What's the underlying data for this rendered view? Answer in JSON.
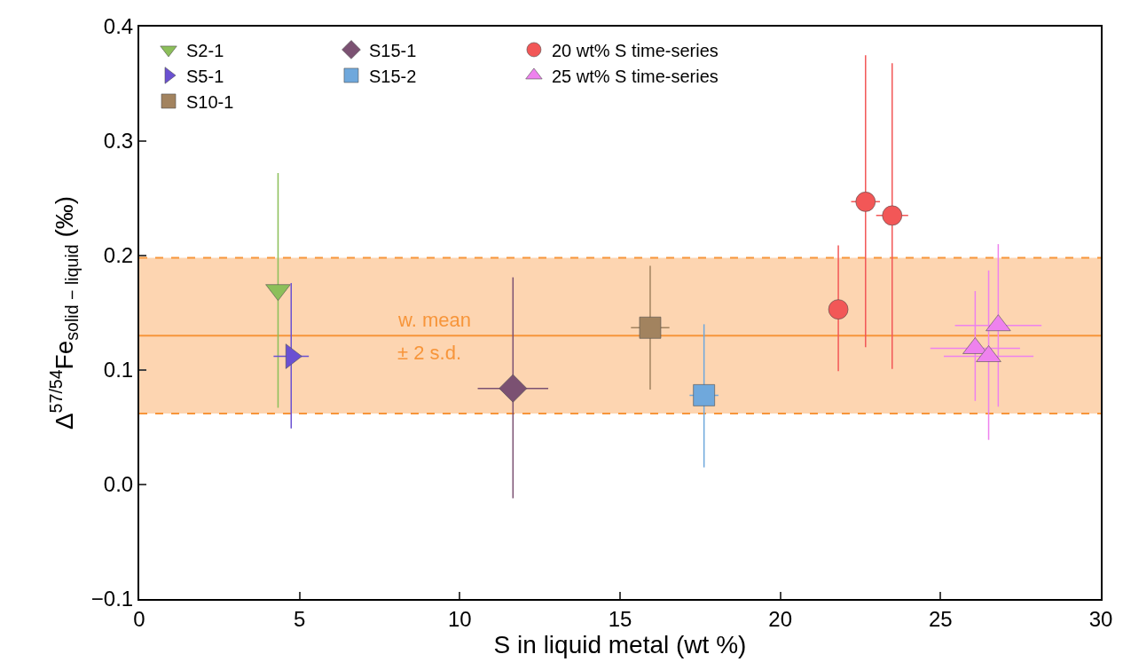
{
  "chart_data": {
    "type": "scatter",
    "xlabel": "S in liquid metal (wt %)",
    "ylabel": "Δ$^{57/54}$Fe$_{solid − liquid}$ (‰)",
    "xlim": [
      0,
      30
    ],
    "ylim": [
      -0.1,
      0.4
    ],
    "xticks": [
      0,
      5,
      10,
      15,
      20,
      25,
      30
    ],
    "yticks": [
      {
        "value": -0.1,
        "label": "−0.1"
      },
      {
        "value": 0.0,
        "label": "0.0"
      },
      {
        "value": 0.1,
        "label": "0.1"
      },
      {
        "value": 0.2,
        "label": "0.2"
      },
      {
        "value": 0.3,
        "label": "0.3"
      },
      {
        "value": 0.4,
        "label": "0.4"
      }
    ],
    "grid": false,
    "legend": "top left",
    "series": [
      {
        "name": "S2-1",
        "color": "#8cbf5a",
        "marker": "triangle-down",
        "x": [
          4.33
        ],
        "values": [
          0.17
        ],
        "errors": [
          [
            0.067,
            0.272
          ]
        ],
        "xerrors": [
          0.25
        ]
      },
      {
        "name": "S5-1",
        "color": "#6a50d2",
        "marker": "triangle-right",
        "x": [
          4.74
        ],
        "values": [
          0.112
        ],
        "errors": [
          [
            0.049,
            0.176
          ]
        ],
        "xerrors": [
          0.55
        ]
      },
      {
        "name": "S10-1",
        "color": "#a2835f",
        "marker": "square",
        "x": [
          15.94
        ],
        "values": [
          0.137
        ],
        "errors": [
          [
            0.083,
            0.191
          ]
        ],
        "xerrors": [
          0.6
        ]
      },
      {
        "name": "S15-1",
        "color": "#7b5172",
        "marker": "diamond",
        "x": [
          11.66
        ],
        "values": [
          0.084
        ],
        "errors": [
          [
            -0.012,
            0.181
          ]
        ],
        "xerrors": [
          1.1
        ]
      },
      {
        "name": "S15-2",
        "color": "#6fa8dc",
        "marker": "square",
        "x": [
          17.62
        ],
        "values": [
          0.078
        ],
        "errors": [
          [
            0.015,
            0.14
          ]
        ],
        "xerrors": [
          0.45
        ]
      },
      {
        "name": "20 wt% S time-series",
        "color": "#f25757",
        "marker": "circle",
        "x": [
          21.81,
          22.66,
          23.49
        ],
        "values": [
          0.153,
          0.247,
          0.235
        ],
        "errors": [
          [
            0.099,
            0.209
          ],
          [
            0.12,
            0.375
          ],
          [
            0.101,
            0.368
          ]
        ],
        "xerrors": [
          null,
          0.45,
          0.5
        ]
      },
      {
        "name": "25 wt% S time-series",
        "color": "#ee82ee",
        "marker": "triangle",
        "x": [
          26.08,
          26.5,
          26.8
        ],
        "values": [
          0.119,
          0.112,
          0.139
        ],
        "errors": [
          [
            0.073,
            0.169
          ],
          [
            0.039,
            0.187
          ],
          [
            0.068,
            0.21
          ]
        ],
        "xerrors": [
          1.4,
          1.4,
          1.35
        ]
      }
    ],
    "bands": [
      {
        "axis": "y",
        "from": 0.062,
        "to": 0.198,
        "color": "#fdd5b1"
      }
    ],
    "ref_lines": [
      {
        "axis": "y",
        "value": 0.13,
        "label": "w. mean\n± 2 s.d.",
        "color": "#f7953a"
      },
      {
        "axis": "y",
        "value": 0.062,
        "color": "#f7953a",
        "line_style": "dashed"
      },
      {
        "axis": "y",
        "value": 0.198,
        "color": "#f7953a",
        "line_style": "dashed"
      }
    ]
  }
}
